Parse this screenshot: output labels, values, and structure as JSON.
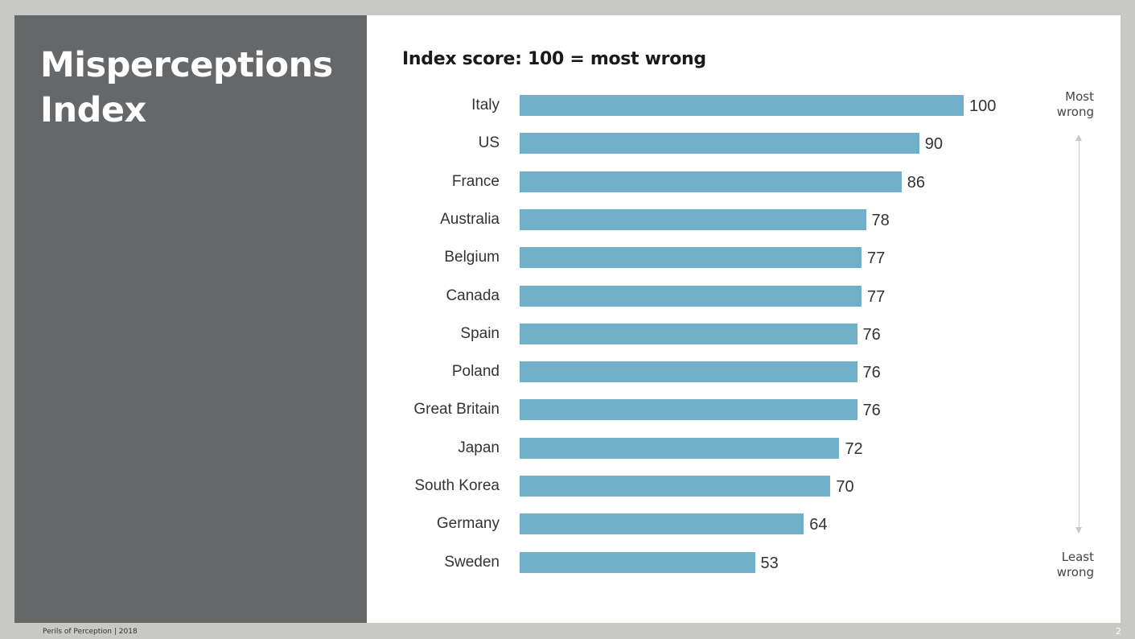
{
  "slide": {
    "title_lines": [
      "Misperceptions",
      "Index"
    ],
    "subtitle": "Index score: 100 = most wrong",
    "footer": "Perils of Perception  | 2018",
    "page_number": "2"
  },
  "scale": {
    "top_label_lines": [
      "Most",
      "wrong"
    ],
    "bottom_label_lines": [
      "Least",
      "wrong"
    ]
  },
  "colors": {
    "bar": "#70b0c8",
    "left_panel": "#666769",
    "background": "#c8c8c6"
  },
  "chart_data": {
    "type": "bar",
    "orientation": "horizontal",
    "title": "Index score: 100 = most wrong",
    "xlabel": "",
    "ylabel": "",
    "categories": [
      "Italy",
      "US",
      "France",
      "Australia",
      "Belgium",
      "Canada",
      "Spain",
      "Poland",
      "Great Britain",
      "Japan",
      "South Korea",
      "Germany",
      "Sweden"
    ],
    "values": [
      100,
      90,
      86,
      78,
      77,
      77,
      76,
      76,
      76,
      72,
      70,
      64,
      53
    ],
    "xlim": [
      0,
      100
    ],
    "grid": false,
    "data_labels": true,
    "annotations": [
      "Most wrong",
      "Least wrong"
    ]
  }
}
